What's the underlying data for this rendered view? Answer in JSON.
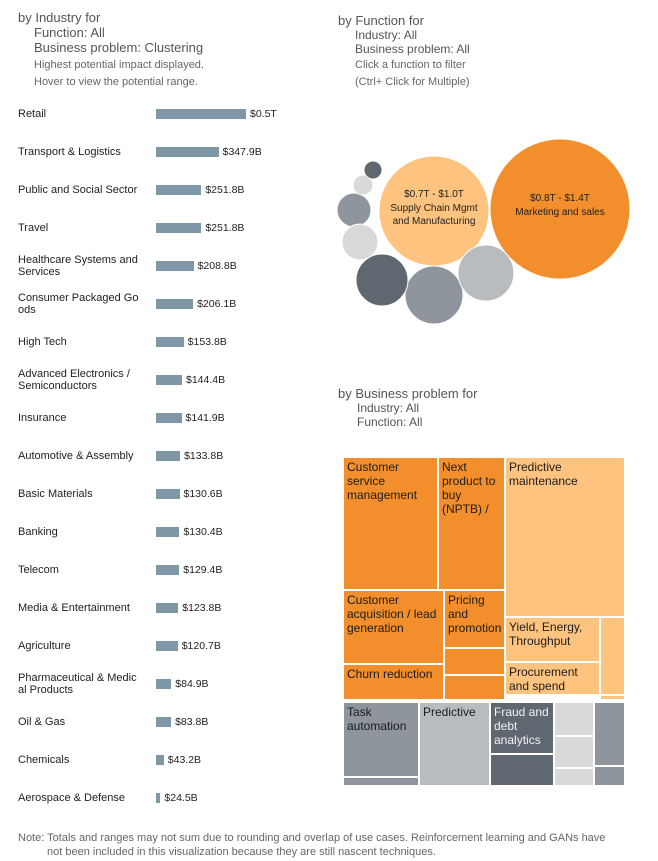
{
  "industry_panel": {
    "title": "by Industry for",
    "sub1": "Function: All",
    "sub2": "Business problem: Clustering",
    "note1": "Highest potential impact displayed.",
    "note2": "Hover to view the potential range."
  },
  "function_panel": {
    "title": "by Function for",
    "sub1": "Industry: All",
    "sub2": "Business problem: All",
    "note1": "Click a function to filter",
    "note2": "(Ctrl+ Click for Multiple)"
  },
  "problem_panel": {
    "title": "by Business problem for",
    "sub1": "Industry: All",
    "sub2": "Function: All"
  },
  "footnote": {
    "line1": "Note: Totals and ranges may not sum due to rounding and overlap of use cases.  Reinforcement learning and GANs have",
    "line2": "not been included in this visualization because they are still nascent techniques."
  },
  "colors": {
    "bar": "#7f98a8",
    "orange_dark": "#f28e2b",
    "orange_light": "#fec37f",
    "grey_dark": "#5f6770",
    "grey_mid": "#8e959c",
    "grey_light": "#b8bcbf",
    "grey_pale": "#d9d9d9"
  },
  "chart_data": [
    {
      "type": "bar",
      "orientation": "horizontal",
      "categories": [
        "Retail",
        "Transport & Logistics",
        "Public and Social Sector",
        "Travel",
        "Healthcare Systems and Services",
        "Consumer Packaged Go ods",
        "High Tech",
        "Advanced Electronics / Semiconductors",
        "Insurance",
        "Automotive & Assembly",
        "Basic Materials",
        "Banking",
        "Telecom",
        "Media & Entertainment",
        "Agriculture",
        "Pharmaceutical & Medic al Products",
        "Oil & Gas",
        "Chemicals",
        "Aerospace & Defense"
      ],
      "values": [
        500,
        347.9,
        251.8,
        251.8,
        208.8,
        206.1,
        153.8,
        144.4,
        141.9,
        133.8,
        130.6,
        130.4,
        129.4,
        123.8,
        120.7,
        84.9,
        83.8,
        43.2,
        24.5
      ],
      "value_labels": [
        "$0.5T",
        "$347.9B",
        "$251.8B",
        "$251.8B",
        "$208.8B",
        "$206.1B",
        "$153.8B",
        "$144.4B",
        "$141.9B",
        "$133.8B",
        "$130.6B",
        "$130.4B",
        "$129.4B",
        "$123.8B",
        "$120.7B",
        "$84.9B",
        "$83.8B",
        "$43.2B",
        "$24.5B"
      ],
      "unit": "$B"
    },
    {
      "type": "bubble",
      "bubbles": [
        {
          "label": "Marketing and sales",
          "range": "$0.8T - $1.4T",
          "color": "orange_dark"
        },
        {
          "label": "Supply Chain Mgmt and Manufacturing",
          "range": "$0.7T - $1.0T",
          "color": "orange_light"
        },
        {
          "label": "",
          "range": "",
          "color": "grey_mid"
        },
        {
          "label": "",
          "range": "",
          "color": "grey_light"
        },
        {
          "label": "",
          "range": "",
          "color": "grey_dark"
        },
        {
          "label": "",
          "range": "",
          "color": "grey_mid"
        },
        {
          "label": "",
          "range": "",
          "color": "grey_pale"
        },
        {
          "label": "",
          "range": "",
          "color": "grey_pale"
        },
        {
          "label": "",
          "range": "",
          "color": "grey_dark"
        }
      ]
    },
    {
      "type": "treemap",
      "cells": [
        {
          "label": "Customer service management",
          "color": "orange_dark"
        },
        {
          "label": "Next product to buy (NPTB) /",
          "color": "orange_dark"
        },
        {
          "label": "Predictive maintenance",
          "color": "orange_light"
        },
        {
          "label": "Customer acquisition / lead generation",
          "color": "orange_dark"
        },
        {
          "label": "Pricing and promotion",
          "color": "orange_dark"
        },
        {
          "label": "Yield, Energy, Throughput",
          "color": "orange_light"
        },
        {
          "label": "",
          "color": "orange_light"
        },
        {
          "label": "Churn reduction",
          "color": "orange_dark"
        },
        {
          "label": "",
          "color": "orange_dark"
        },
        {
          "label": "",
          "color": "orange_dark"
        },
        {
          "label": "Procurement and spend",
          "color": "orange_light"
        },
        {
          "label": "",
          "color": "orange_light"
        },
        {
          "label": "Task automation",
          "color": "grey_mid"
        },
        {
          "label": "",
          "color": "grey_mid"
        },
        {
          "label": "Predictive",
          "color": "grey_light"
        },
        {
          "label": "Fraud and debt analytics",
          "color": "grey_dark"
        },
        {
          "label": "",
          "color": "grey_dark"
        },
        {
          "label": "",
          "color": "grey_pale"
        },
        {
          "label": "",
          "color": "grey_pale"
        },
        {
          "label": "",
          "color": "grey_pale"
        },
        {
          "label": "",
          "color": "grey_mid"
        },
        {
          "label": "",
          "color": "grey_mid"
        }
      ]
    }
  ]
}
